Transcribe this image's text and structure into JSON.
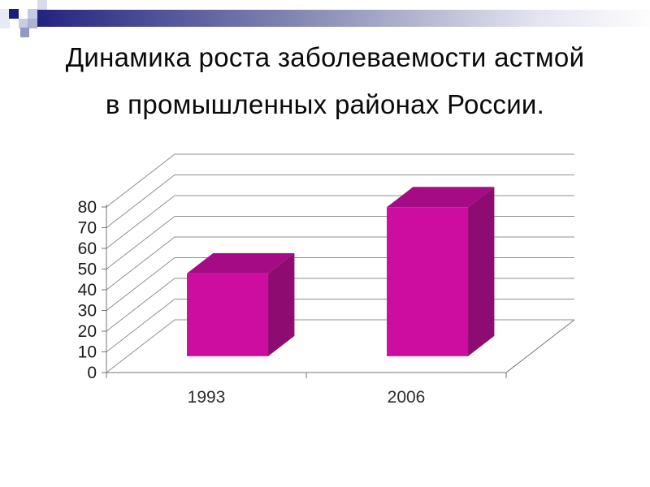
{
  "slide": {
    "title_line1": "Динамика роста заболеваемости астмой",
    "title_line2": "в промышленных районах России."
  },
  "header_decor": {
    "gradient_colors": [
      "#232380",
      "#8F92B8",
      "#E4E5F0",
      "#FDFDFE"
    ],
    "square_colors": {
      "left_strip": "#E7E9F4",
      "dark_navy": "#1B1E7C",
      "periwinkle_light": "#C5C9E2",
      "lavender": "#C9CCE4",
      "blue_gray": "#AEB2D3",
      "medium_blue": "#9298C6",
      "pale": "#D9DBEC"
    }
  },
  "chart_data": {
    "type": "bar",
    "projection": "3d-oblique",
    "title": "",
    "categories": [
      "1993",
      "2006"
    ],
    "values": [
      40,
      72
    ],
    "xlabel": "",
    "ylabel": "",
    "ylim": [
      0,
      80
    ],
    "ytick_step": 10,
    "ytick_labels": [
      "0",
      "10",
      "20",
      "30",
      "40",
      "50",
      "60",
      "70",
      "80"
    ],
    "grid": true,
    "legend": false,
    "colors": {
      "bar_front": "#CC0D9F",
      "bar_top": "#A50B85",
      "bar_side": "#8E0C72",
      "gridline": "#8F8F8F",
      "axis": "#757575",
      "tick_label": "#1A1A1A",
      "category_label": "#2D2D2D"
    }
  }
}
